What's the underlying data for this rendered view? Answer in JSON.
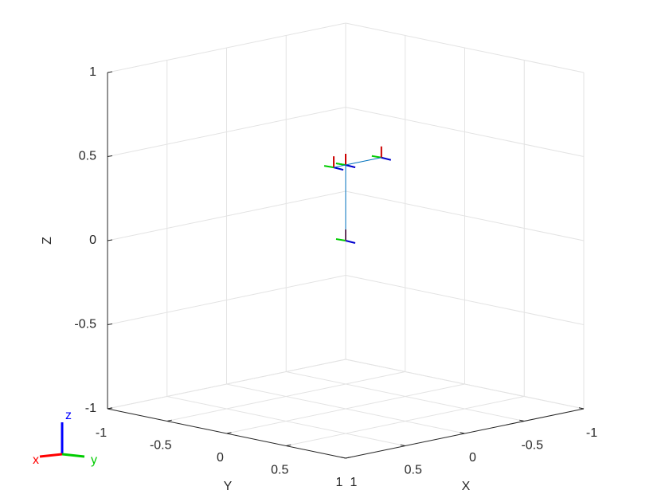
{
  "chart_data": {
    "type": "plot3d",
    "xlabel": "X",
    "ylabel": "Y",
    "zlabel": "Z",
    "xlim": [
      -1,
      1
    ],
    "ylim": [
      -1,
      1
    ],
    "zlim": [
      -1,
      1
    ],
    "xticks": [
      -1,
      -0.5,
      0,
      0.5,
      1
    ],
    "yticks": [
      -1,
      -0.5,
      0,
      0.5,
      1
    ],
    "zticks": [
      -1,
      -0.5,
      0,
      0.5,
      1
    ],
    "grid": true,
    "series": [
      {
        "color": "#0072bd",
        "x": [
          0,
          0,
          0.1,
          0,
          -0.3
        ],
        "y": [
          0,
          0,
          0,
          0,
          0
        ],
        "z": [
          0,
          0.45,
          0.45,
          0.45,
          0.45
        ]
      }
    ],
    "triad": {
      "x": "x",
      "y": "y",
      "z": "z"
    }
  }
}
